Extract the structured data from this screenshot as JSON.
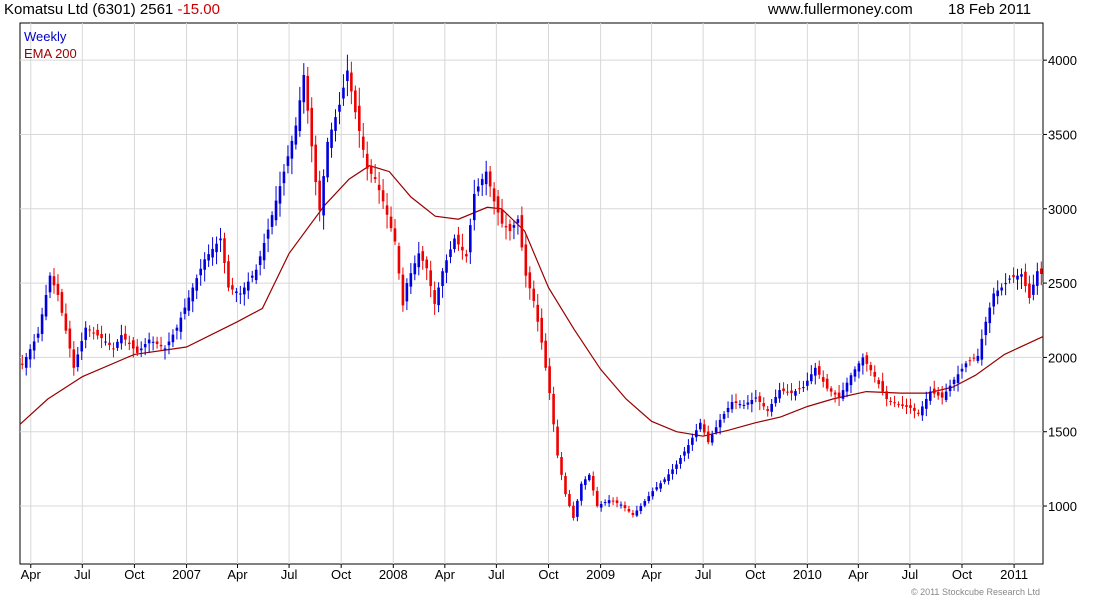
{
  "header": {
    "title": "Komatsu Ltd (6301) 2561",
    "change": "-15.00",
    "site": "www.fullermoney.com",
    "date": "18 Feb 2011"
  },
  "footer": {
    "copyright": "© 2011 Stockcube Research Ltd"
  },
  "colors": {
    "up": "#0000dd",
    "down": "#ee0000",
    "ema": "#990000",
    "grid": "#d8d8d8",
    "axis": "#000000"
  },
  "chart_data": {
    "type": "candlestick",
    "frequency_label": "Weekly",
    "series": [
      {
        "name": "Weekly"
      },
      {
        "name": "EMA 200"
      }
    ],
    "x_range": [
      "2006-03-13",
      "2011-02-21"
    ],
    "ylim": [
      610,
      4250
    ],
    "y_ticks": [
      1000,
      1500,
      2000,
      2500,
      3000,
      3500,
      4000
    ],
    "grid": true,
    "x_ticks": [
      {
        "label": "Apr",
        "date": "2006-04-01"
      },
      {
        "label": "Jul",
        "date": "2006-07-01"
      },
      {
        "label": "Oct",
        "date": "2006-10-01"
      },
      {
        "label": "2007",
        "date": "2007-01-01"
      },
      {
        "label": "Apr",
        "date": "2007-04-01"
      },
      {
        "label": "Jul",
        "date": "2007-07-01"
      },
      {
        "label": "Oct",
        "date": "2007-10-01"
      },
      {
        "label": "2008",
        "date": "2008-01-01"
      },
      {
        "label": "Apr",
        "date": "2008-04-01"
      },
      {
        "label": "Jul",
        "date": "2008-07-01"
      },
      {
        "label": "Oct",
        "date": "2008-10-01"
      },
      {
        "label": "2009",
        "date": "2009-01-01"
      },
      {
        "label": "Apr",
        "date": "2009-04-01"
      },
      {
        "label": "Jul",
        "date": "2009-07-01"
      },
      {
        "label": "Oct",
        "date": "2009-10-01"
      },
      {
        "label": "2010",
        "date": "2010-01-01"
      },
      {
        "label": "Apr",
        "date": "2010-04-01"
      },
      {
        "label": "Jul",
        "date": "2010-07-01"
      },
      {
        "label": "Oct",
        "date": "2010-10-01"
      },
      {
        "label": "2011",
        "date": "2011-01-01"
      }
    ],
    "close_path": [
      [
        "2006-03-17",
        1950
      ],
      [
        "2006-04-14",
        2160
      ],
      [
        "2006-05-05",
        2550
      ],
      [
        "2006-05-19",
        2420
      ],
      [
        "2006-06-09",
        2060
      ],
      [
        "2006-06-16",
        1930
      ],
      [
        "2006-07-07",
        2200
      ],
      [
        "2006-08-04",
        2130
      ],
      [
        "2006-08-25",
        2060
      ],
      [
        "2006-09-08",
        2150
      ],
      [
        "2006-10-06",
        2030
      ],
      [
        "2006-10-27",
        2120
      ],
      [
        "2006-11-24",
        2060
      ],
      [
        "2006-12-15",
        2200
      ],
      [
        "2007-01-12",
        2470
      ],
      [
        "2007-02-02",
        2660
      ],
      [
        "2007-03-02",
        2800
      ],
      [
        "2007-03-16",
        2470
      ],
      [
        "2007-04-06",
        2430
      ],
      [
        "2007-05-04",
        2590
      ],
      [
        "2007-05-25",
        2860
      ],
      [
        "2007-06-22",
        3250
      ],
      [
        "2007-07-13",
        3560
      ],
      [
        "2007-07-27",
        3900
      ],
      [
        "2007-08-17",
        3180
      ],
      [
        "2007-08-24",
        2990
      ],
      [
        "2007-09-07",
        3450
      ],
      [
        "2007-09-28",
        3700
      ],
      [
        "2007-10-12",
        3930
      ],
      [
        "2007-10-26",
        3650
      ],
      [
        "2007-11-16",
        3270
      ],
      [
        "2007-11-30",
        3200
      ],
      [
        "2007-12-14",
        3050
      ],
      [
        "2008-01-04",
        2780
      ],
      [
        "2008-01-18",
        2350
      ],
      [
        "2008-01-25",
        2500
      ],
      [
        "2008-02-15",
        2700
      ],
      [
        "2008-02-29",
        2600
      ],
      [
        "2008-03-14",
        2360
      ],
      [
        "2008-03-28",
        2580
      ],
      [
        "2008-04-18",
        2800
      ],
      [
        "2008-05-09",
        2680
      ],
      [
        "2008-05-23",
        3100
      ],
      [
        "2008-06-13",
        3250
      ],
      [
        "2008-06-27",
        3050
      ],
      [
        "2008-07-11",
        2900
      ],
      [
        "2008-07-25",
        2850
      ],
      [
        "2008-08-08",
        2930
      ],
      [
        "2008-08-22",
        2550
      ],
      [
        "2008-09-05",
        2380
      ],
      [
        "2008-09-19",
        2100
      ],
      [
        "2008-10-03",
        1760
      ],
      [
        "2008-10-17",
        1340
      ],
      [
        "2008-10-31",
        1080
      ],
      [
        "2008-11-14",
        920
      ],
      [
        "2008-11-28",
        1150
      ],
      [
        "2008-12-12",
        1210
      ],
      [
        "2008-12-26",
        1000
      ],
      [
        "2009-01-16",
        1040
      ],
      [
        "2009-02-06",
        1010
      ],
      [
        "2009-02-27",
        940
      ],
      [
        "2009-03-13",
        1000
      ],
      [
        "2009-04-03",
        1100
      ],
      [
        "2009-04-24",
        1180
      ],
      [
        "2009-05-15",
        1280
      ],
      [
        "2009-06-05",
        1410
      ],
      [
        "2009-06-26",
        1560
      ],
      [
        "2009-07-10",
        1430
      ],
      [
        "2009-07-31",
        1580
      ],
      [
        "2009-08-21",
        1700
      ],
      [
        "2009-09-11",
        1680
      ],
      [
        "2009-10-02",
        1730
      ],
      [
        "2009-10-23",
        1640
      ],
      [
        "2009-11-13",
        1780
      ],
      [
        "2009-12-04",
        1760
      ],
      [
        "2009-12-25",
        1800
      ],
      [
        "2010-01-15",
        1930
      ],
      [
        "2010-02-05",
        1790
      ],
      [
        "2010-02-26",
        1730
      ],
      [
        "2010-03-19",
        1880
      ],
      [
        "2010-04-09",
        2000
      ],
      [
        "2010-04-30",
        1870
      ],
      [
        "2010-05-21",
        1720
      ],
      [
        "2010-06-11",
        1680
      ],
      [
        "2010-07-02",
        1660
      ],
      [
        "2010-07-16",
        1620
      ],
      [
        "2010-08-06",
        1770
      ],
      [
        "2010-08-27",
        1730
      ],
      [
        "2010-09-17",
        1850
      ],
      [
        "2010-10-08",
        1960
      ],
      [
        "2010-10-29",
        2010
      ],
      [
        "2010-11-12",
        2240
      ],
      [
        "2010-11-26",
        2430
      ],
      [
        "2010-12-10",
        2470
      ],
      [
        "2010-12-24",
        2530
      ],
      [
        "2011-01-14",
        2560
      ],
      [
        "2011-01-28",
        2400
      ],
      [
        "2011-02-11",
        2580
      ],
      [
        "2011-02-18",
        2561
      ]
    ],
    "ema_path": [
      [
        "2006-03-13",
        1550
      ],
      [
        "2006-05-01",
        1720
      ],
      [
        "2006-07-01",
        1870
      ],
      [
        "2006-10-01",
        2020
      ],
      [
        "2007-01-01",
        2070
      ],
      [
        "2007-04-01",
        2240
      ],
      [
        "2007-05-15",
        2330
      ],
      [
        "2007-07-01",
        2700
      ],
      [
        "2007-09-01",
        3020
      ],
      [
        "2007-10-15",
        3200
      ],
      [
        "2007-11-20",
        3290
      ],
      [
        "2007-12-25",
        3250
      ],
      [
        "2008-02-01",
        3080
      ],
      [
        "2008-03-15",
        2950
      ],
      [
        "2008-04-25",
        2930
      ],
      [
        "2008-06-15",
        3010
      ],
      [
        "2008-07-10",
        3000
      ],
      [
        "2008-08-20",
        2850
      ],
      [
        "2008-10-01",
        2470
      ],
      [
        "2008-11-15",
        2190
      ],
      [
        "2009-01-01",
        1920
      ],
      [
        "2009-02-15",
        1720
      ],
      [
        "2009-04-01",
        1570
      ],
      [
        "2009-05-15",
        1500
      ],
      [
        "2009-07-01",
        1470
      ],
      [
        "2009-08-15",
        1510
      ],
      [
        "2009-10-01",
        1560
      ],
      [
        "2009-11-15",
        1600
      ],
      [
        "2010-01-01",
        1670
      ],
      [
        "2010-02-15",
        1720
      ],
      [
        "2010-04-15",
        1770
      ],
      [
        "2010-06-15",
        1760
      ],
      [
        "2010-08-01",
        1760
      ],
      [
        "2010-09-15",
        1800
      ],
      [
        "2010-10-25",
        1880
      ],
      [
        "2010-12-15",
        2020
      ],
      [
        "2011-02-21",
        2140
      ]
    ]
  }
}
